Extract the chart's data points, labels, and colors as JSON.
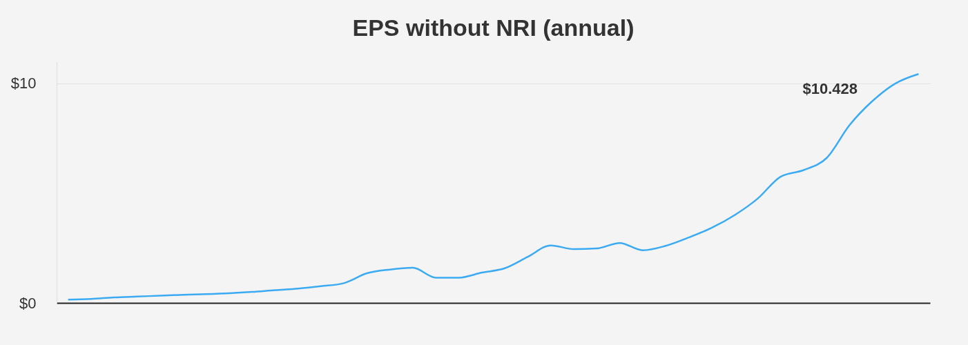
{
  "chart_data": {
    "type": "line",
    "title": "EPS without NRI (annual)",
    "categories": [
      null,
      null,
      null,
      null,
      null,
      null,
      null,
      null,
      null,
      null,
      null,
      null,
      null,
      null,
      null,
      null,
      null,
      null,
      null,
      null,
      null,
      null,
      null,
      null,
      null,
      null,
      null,
      null,
      null,
      null,
      null,
      null,
      null,
      null,
      null,
      null,
      null,
      null
    ],
    "series": [
      {
        "color": "#3aaaf2",
        "values": [
          0.15,
          0.18,
          0.25,
          0.29,
          0.33,
          0.37,
          0.4,
          0.44,
          0.5,
          0.58,
          0.65,
          0.76,
          0.9,
          1.35,
          1.52,
          1.6,
          1.15,
          1.15,
          1.38,
          1.58,
          2.1,
          2.62,
          2.45,
          2.48,
          2.73,
          2.4,
          2.6,
          2.98,
          3.42,
          4.0,
          4.75,
          5.75,
          6.05,
          6.6,
          8.1,
          9.2,
          10.0,
          10.428
        ]
      }
    ],
    "ylim": [
      0,
      11
    ],
    "yticks": [
      {
        "value": 0,
        "label": "$0"
      },
      {
        "value": 10,
        "label": "$10"
      }
    ],
    "grid": "y",
    "tick_labels": "y",
    "marker": "none",
    "annotations": [
      "$10.428"
    ]
  }
}
